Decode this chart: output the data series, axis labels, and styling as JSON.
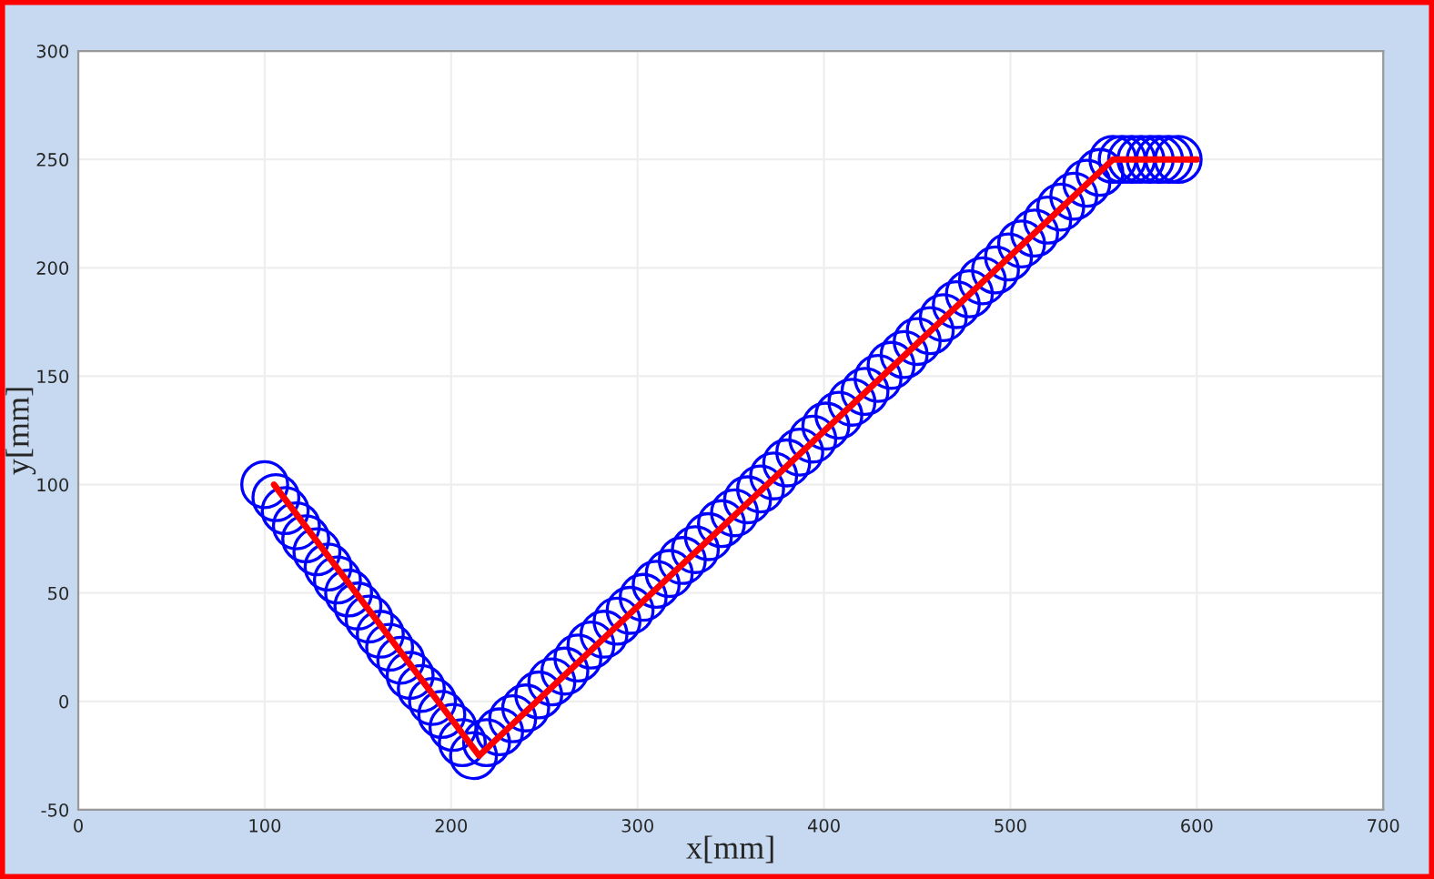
{
  "chart_data": {
    "type": "scatter",
    "xlabel": "x[mm]",
    "ylabel": "y[mm]",
    "xlim": [
      0,
      700
    ],
    "ylim": [
      -50,
      300
    ],
    "xticks": [
      0,
      100,
      200,
      300,
      400,
      500,
      600,
      700
    ],
    "yticks": [
      -50,
      0,
      50,
      100,
      150,
      200,
      250,
      300
    ],
    "grid": true,
    "legend": false,
    "series": [
      {
        "marker": "circle",
        "color": "#0000ff",
        "x": [
          100,
          106,
          111,
          117,
          122,
          128,
          134,
          139,
          145,
          150,
          156,
          162,
          167,
          173,
          178,
          184,
          190,
          195,
          201,
          206,
          212,
          219,
          226,
          233,
          240,
          247,
          254,
          261,
          268,
          275,
          282,
          289,
          296,
          303,
          310,
          317,
          324,
          331,
          338,
          345,
          352,
          359,
          366,
          373,
          380,
          387,
          394,
          401,
          408,
          415,
          422,
          429,
          436,
          443,
          450,
          457,
          464,
          471,
          478,
          485,
          492,
          499,
          506,
          513,
          520,
          527,
          534,
          541,
          548,
          555,
          560,
          565,
          570,
          575,
          580,
          585,
          590
        ],
        "values": [
          100,
          94,
          88,
          81,
          75,
          69,
          62,
          56,
          50,
          44,
          38,
          31,
          25,
          19,
          12,
          6,
          0,
          -6,
          -12,
          -19,
          -25,
          -19,
          -14,
          -8,
          -3,
          3,
          9,
          14,
          20,
          26,
          31,
          37,
          42,
          48,
          54,
          59,
          65,
          70,
          76,
          82,
          87,
          93,
          98,
          104,
          110,
          115,
          121,
          127,
          132,
          138,
          143,
          149,
          155,
          160,
          166,
          171,
          177,
          183,
          188,
          194,
          199,
          205,
          211,
          216,
          222,
          228,
          233,
          239,
          244,
          250,
          250,
          250,
          250,
          250,
          250,
          250,
          250
        ]
      },
      {
        "type": "line",
        "marker": "none",
        "color": "#ff0000",
        "x": [
          105,
          215,
          555,
          600
        ],
        "values": [
          100,
          -25,
          250,
          250
        ]
      }
    ]
  }
}
